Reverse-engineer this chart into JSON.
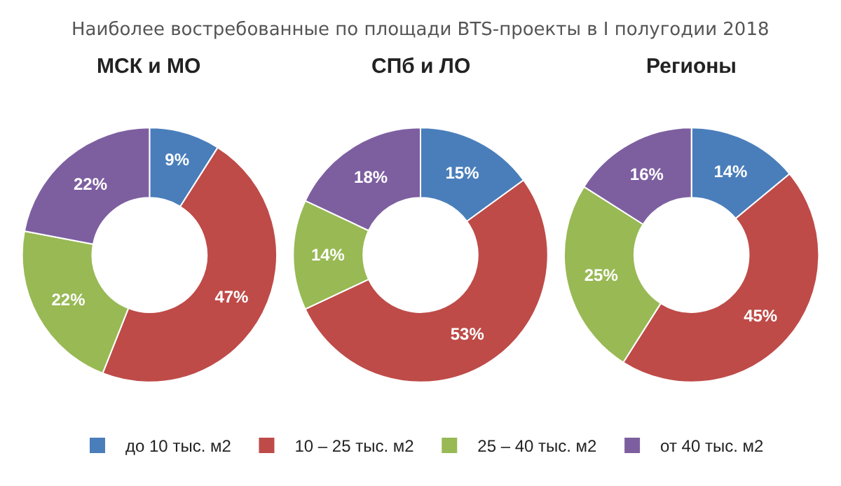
{
  "chart_data": [
    {
      "type": "donut",
      "title": "МСК и МО",
      "annotations": [
        "Наиболее востребованные по площади BTS-проекты в I полугодии 2018"
      ],
      "categories": [
        "до 10 тыс. м2",
        "10 – 25 тыс. м2",
        "25 – 40 тыс. м2",
        "от 40 тыс. м2"
      ],
      "values": [
        9,
        47,
        22,
        22
      ],
      "value_labels": [
        "9%",
        "47%",
        "22%",
        "22%"
      ],
      "colors": [
        "#4a7ebb",
        "#be4b48",
        "#98b954",
        "#7d5fa0"
      ],
      "legend": "bottom"
    },
    {
      "type": "donut",
      "title": "СПб и ЛО",
      "categories": [
        null,
        null,
        null,
        null
      ],
      "values": [
        15,
        53,
        14,
        18
      ],
      "value_labels": [
        "15%",
        "53%",
        "14%",
        "18%"
      ],
      "colors": [
        "#4a7ebb",
        "#be4b48",
        "#98b954",
        "#7d5fa0"
      ]
    },
    {
      "type": "donut",
      "title": "Регионы",
      "categories": [
        null,
        null,
        null,
        null
      ],
      "values": [
        14,
        45,
        25,
        16
      ],
      "value_labels": [
        "14%",
        "45%",
        "25%",
        "16%"
      ],
      "colors": [
        "#4a7ebb",
        "#be4b48",
        "#98b954",
        "#7d5fa0"
      ]
    }
  ]
}
